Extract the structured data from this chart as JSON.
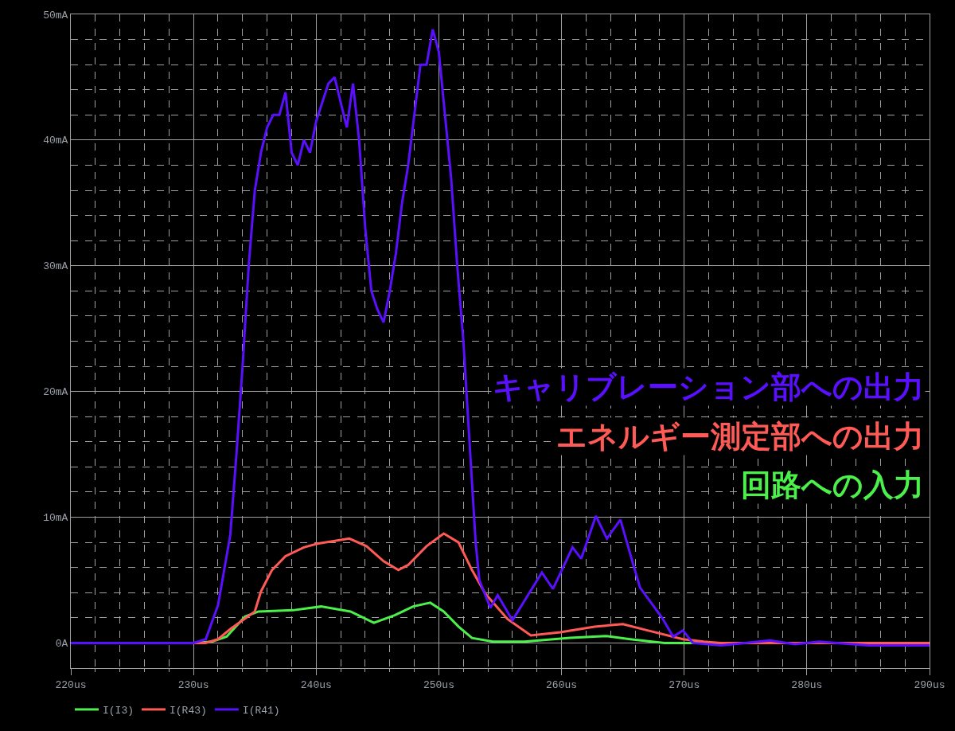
{
  "chart_data": {
    "type": "line",
    "xlim": [
      220,
      290
    ],
    "xticks": [
      {
        "value": 220,
        "label": "220us"
      },
      {
        "value": 230,
        "label": "230us"
      },
      {
        "value": 240,
        "label": "240us"
      },
      {
        "value": 250,
        "label": "250us"
      },
      {
        "value": 260,
        "label": "260us"
      },
      {
        "value": 270,
        "label": "270us"
      },
      {
        "value": 280,
        "label": "280us"
      },
      {
        "value": 290,
        "label": "290us"
      }
    ],
    "ylim": [
      -2,
      50
    ],
    "yticks": [
      {
        "value": 0,
        "label": "0A"
      },
      {
        "value": 10,
        "label": "10mA"
      },
      {
        "value": 20,
        "label": "20mA"
      },
      {
        "value": 30,
        "label": "30mA"
      },
      {
        "value": 40,
        "label": "40mA"
      },
      {
        "value": 50,
        "label": "50mA"
      }
    ],
    "grid": true,
    "legend": "bottom",
    "series": [
      {
        "name": "I(I3)",
        "color": "#4cf04a",
        "x": [
          220,
          230,
          231.5,
          232.7,
          234.2,
          235.3,
          238.1,
          240.4,
          242.8,
          244.7,
          246.4,
          247.9,
          249.3,
          250.4,
          251.6,
          252.7,
          254.4,
          257,
          260.7,
          263.6,
          265.6,
          268.4,
          275,
          290
        ],
        "values": [
          0,
          0,
          0.1,
          0.5,
          2.1,
          2.5,
          2.6,
          2.9,
          2.5,
          1.6,
          2.2,
          2.9,
          3.2,
          2.5,
          1.3,
          0.4,
          0.1,
          0.1,
          0.4,
          0.55,
          0.3,
          0,
          0,
          0
        ]
      },
      {
        "name": "I(R43)",
        "color": "#ff5a55",
        "x": [
          220,
          231,
          232,
          233,
          234,
          235,
          235.5,
          236.4,
          237.5,
          239,
          240.1,
          242.7,
          244.1,
          245.5,
          246.7,
          247.5,
          249,
          250.4,
          251.6,
          252.7,
          253.8,
          255.6,
          257.5,
          259.9,
          262.7,
          265,
          267,
          269.9,
          271.6,
          273,
          290
        ],
        "values": [
          0,
          0,
          0.3,
          1.1,
          1.8,
          2.5,
          4.1,
          5.8,
          6.9,
          7.6,
          7.9,
          8.3,
          7.7,
          6.5,
          5.8,
          6.2,
          7.7,
          8.7,
          8,
          5.8,
          3.9,
          1.9,
          0.6,
          0.85,
          1.3,
          1.5,
          1,
          0.3,
          0.1,
          0,
          0
        ]
      },
      {
        "name": "I(R41)",
        "color": "#5a10ff",
        "x": [
          220,
          230,
          231,
          232,
          233,
          233.5,
          234,
          234.5,
          235,
          235.5,
          236,
          236.5,
          237,
          237.5,
          238,
          238.5,
          239,
          239.5,
          240,
          241,
          241.5,
          242,
          242.5,
          243,
          243.5,
          244,
          244.5,
          245,
          245.5,
          246,
          246.5,
          247,
          247.5,
          248,
          248.5,
          249,
          249.5,
          250,
          250.5,
          251,
          251.5,
          252,
          252.5,
          253,
          253.3,
          254.2,
          254.8,
          256,
          258.4,
          259.3,
          260.9,
          261.6,
          262.8,
          263.7,
          264.8,
          265.8,
          266.4,
          268.2,
          269.1,
          269.9,
          270.7,
          273,
          277,
          279,
          281,
          285,
          290
        ],
        "values": [
          0,
          0,
          0.3,
          3,
          8.6,
          15,
          22,
          30,
          36,
          39,
          41,
          42,
          42,
          43.8,
          39,
          38,
          40,
          39,
          41.5,
          44.5,
          45,
          43,
          41,
          44.5,
          40,
          33,
          28,
          26.5,
          25.5,
          28,
          31,
          35,
          38,
          42,
          46,
          46,
          48.8,
          47,
          42,
          37,
          30,
          24,
          16,
          8,
          5,
          2.8,
          3.8,
          1.8,
          5.6,
          4.3,
          7.6,
          6.7,
          10.1,
          8.3,
          9.8,
          6.4,
          4.4,
          2,
          0.5,
          1,
          0,
          -0.2,
          0.2,
          -0.1,
          0.1,
          -0.2,
          -0.2
        ]
      }
    ],
    "annotations": [
      "キャリブレーション部への出力",
      "エネルギー測定部への出力",
      "回路への入力"
    ]
  }
}
